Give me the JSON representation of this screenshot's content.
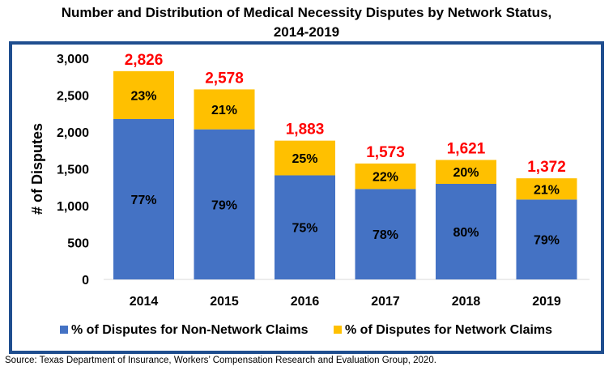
{
  "chart_data": {
    "type": "bar",
    "stacked": true,
    "title": "Number and Distribution of Medical Necessity Disputes by Network Status, 2014-2019",
    "title_lines": [
      "Number and Distribution of Medical Necessity Disputes by Network Status,",
      "2014-2019"
    ],
    "ylabel": "# of Disputes",
    "xlabel": "",
    "ylim": [
      0,
      3000
    ],
    "yticks": [
      0,
      500,
      1000,
      1500,
      2000,
      2500,
      3000
    ],
    "ytick_labels": [
      "0",
      "500",
      "1,000",
      "1,500",
      "2,000",
      "2,500",
      "3,000"
    ],
    "grid": false,
    "legend": "bottom",
    "categories": [
      "2014",
      "2015",
      "2016",
      "2017",
      "2018",
      "2019"
    ],
    "totals": [
      2826,
      2578,
      1883,
      1573,
      1621,
      1372
    ],
    "total_labels": [
      "2,826",
      "2,578",
      "1,883",
      "1,573",
      "1,621",
      "1,372"
    ],
    "series": [
      {
        "name": "% of Disputes for Non-Network Claims",
        "color": "#4472C4",
        "percent": [
          77,
          79,
          75,
          78,
          80,
          79
        ],
        "labels": [
          "77%",
          "79%",
          "75%",
          "78%",
          "80%",
          "79%"
        ]
      },
      {
        "name": "% of Disputes for Network Claims",
        "color": "#FFC000",
        "percent": [
          23,
          21,
          25,
          22,
          20,
          21
        ],
        "labels": [
          "23%",
          "21%",
          "25%",
          "22%",
          "20%",
          "21%"
        ]
      }
    ],
    "total_label_color": "#FF0000",
    "frame_color": "#1F4E8F"
  },
  "source": "Source: Texas Department of Insurance, Workers’ Compensation Research and Evaluation Group, 2020."
}
